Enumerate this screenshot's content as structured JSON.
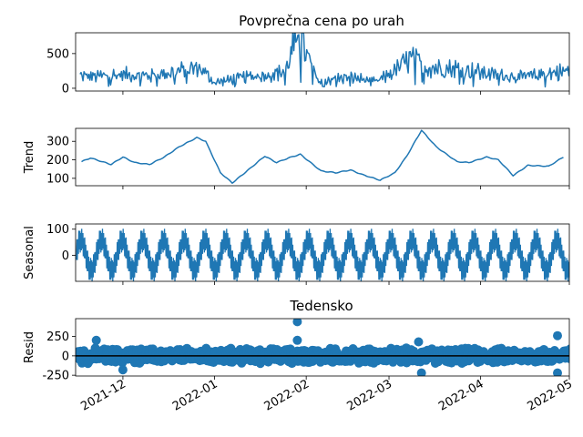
{
  "figure": {
    "title": "Povprečna cena po urah",
    "bottom_title": "Tedensko",
    "x_ticks": [
      "2021-12",
      "2022-01",
      "2022-02",
      "2022-03",
      "2022-04",
      "2022-05"
    ],
    "x_range": [
      "2021-11-15",
      "2022-05-01"
    ],
    "line_color": "#1f77b4"
  },
  "chart_data": [
    {
      "type": "line",
      "panel": "observed",
      "title": "Povprečna cena po urah",
      "ylabel": "",
      "ylim": [
        -40,
        800
      ],
      "yticks": [
        0,
        500
      ],
      "x": [
        "2021-11-15",
        "2021-11-22",
        "2021-12-01",
        "2021-12-10",
        "2021-12-20",
        "2021-12-27",
        "2022-01-01",
        "2022-01-10",
        "2022-01-20",
        "2022-01-25",
        "2022-01-29",
        "2022-02-05",
        "2022-02-15",
        "2022-02-25",
        "2022-03-03",
        "2022-03-08",
        "2022-03-15",
        "2022-03-25",
        "2022-04-05",
        "2022-04-15",
        "2022-04-25",
        "2022-05-01"
      ],
      "values": [
        180,
        170,
        200,
        180,
        250,
        300,
        80,
        150,
        200,
        250,
        780,
        100,
        160,
        100,
        250,
        420,
        300,
        280,
        200,
        160,
        220,
        250
      ]
    },
    {
      "type": "line",
      "panel": "trend",
      "ylabel": "Trend",
      "ylim": [
        60,
        370
      ],
      "yticks": [
        100,
        200,
        300
      ],
      "x": [
        "2021-11-17",
        "2021-11-20",
        "2021-11-27",
        "2021-12-01",
        "2021-12-05",
        "2021-12-10",
        "2021-12-15",
        "2021-12-20",
        "2021-12-26",
        "2021-12-29",
        "2022-01-03",
        "2022-01-07",
        "2022-01-12",
        "2022-01-18",
        "2022-01-22",
        "2022-01-26",
        "2022-01-30",
        "2022-02-06",
        "2022-02-11",
        "2022-02-16",
        "2022-02-20",
        "2022-02-26",
        "2022-03-03",
        "2022-03-07",
        "2022-03-12",
        "2022-03-17",
        "2022-03-24",
        "2022-03-28",
        "2022-04-03",
        "2022-04-07",
        "2022-04-12",
        "2022-04-17",
        "2022-04-24",
        "2022-04-29"
      ],
      "values": [
        190,
        210,
        175,
        215,
        185,
        175,
        215,
        270,
        320,
        300,
        130,
        75,
        140,
        220,
        185,
        210,
        230,
        140,
        130,
        145,
        120,
        90,
        130,
        220,
        360,
        270,
        190,
        185,
        215,
        200,
        115,
        170,
        165,
        215
      ]
    },
    {
      "type": "line",
      "panel": "seasonal",
      "ylabel": "Seasonal",
      "ylim": [
        -100,
        120
      ],
      "yticks": [
        0,
        100
      ],
      "period_days": 7,
      "amplitude": 105
    },
    {
      "type": "scatter",
      "panel": "resid",
      "title": "Tedensko",
      "ylabel": "Resid",
      "ylim": [
        -260,
        480
      ],
      "yticks": [
        -250,
        0,
        250
      ],
      "outliers": [
        {
          "x": "2022-01-29",
          "y": 440
        },
        {
          "x": "2022-01-29",
          "y": 200
        },
        {
          "x": "2022-04-27",
          "y": 260
        },
        {
          "x": "2021-11-22",
          "y": 200
        },
        {
          "x": "2022-03-11",
          "y": 180
        },
        {
          "x": "2021-12-01",
          "y": -180
        },
        {
          "x": "2022-03-12",
          "y": -220
        },
        {
          "x": "2022-04-27",
          "y": -220
        }
      ]
    }
  ]
}
